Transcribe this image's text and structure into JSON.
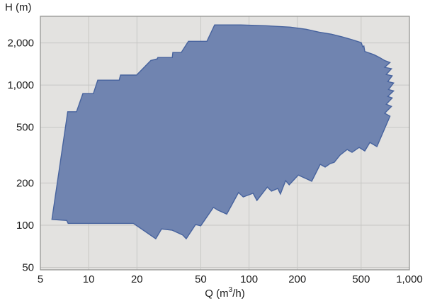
{
  "page": {
    "background": "#ffffff"
  },
  "chart_data": {
    "type": "area",
    "title": "",
    "ylabel": "H (m)",
    "xlabel_parts": {
      "pre": "Q (m",
      "sup": "3",
      "post": "/h)"
    },
    "x_scale": "log",
    "y_scale": "log",
    "xlim": [
      5,
      1000
    ],
    "ylim": [
      48,
      3100
    ],
    "grid": true,
    "legend": "none",
    "x_ticks": [
      {
        "v": 5,
        "label": "5"
      },
      {
        "v": 10,
        "label": "10"
      },
      {
        "v": 20,
        "label": "20"
      },
      {
        "v": 50,
        "label": "50"
      },
      {
        "v": 100,
        "label": "100"
      },
      {
        "v": 200,
        "label": "200"
      },
      {
        "v": 500,
        "label": "500"
      },
      {
        "v": 1000,
        "label": "1,000"
      }
    ],
    "y_ticks": [
      {
        "v": 50,
        "label": "50"
      },
      {
        "v": 100,
        "label": "100"
      },
      {
        "v": 200,
        "label": "200"
      },
      {
        "v": 500,
        "label": "500"
      },
      {
        "v": 1000,
        "label": "1,000"
      },
      {
        "v": 2000,
        "label": "2,000"
      }
    ],
    "x_gridlines": [
      10,
      20,
      50,
      100,
      200,
      500
    ],
    "y_gridlines": [
      50,
      100,
      200,
      500,
      1000,
      2000
    ],
    "colors": {
      "plot_bg": "#e3e2e0",
      "grid": "#c7c7c5",
      "plot_border": "#8f8f8d",
      "area_fill": "#7084b0",
      "area_stroke": "#47639e",
      "text": "#1c1c1c"
    },
    "series": [
      {
        "name": "pump-operating-range",
        "type": "area",
        "points_qh": [
          [
            5.9,
            110
          ],
          [
            7.4,
            645
          ],
          [
            8.4,
            645
          ],
          [
            9.2,
            870
          ],
          [
            10.7,
            870
          ],
          [
            11.4,
            1085
          ],
          [
            15.5,
            1085
          ],
          [
            15.8,
            1180
          ],
          [
            19.9,
            1180
          ],
          [
            24.4,
            1500
          ],
          [
            26.8,
            1540
          ],
          [
            27,
            1575
          ],
          [
            33.2,
            1575
          ],
          [
            33.5,
            1710
          ],
          [
            37.8,
            1710
          ],
          [
            41.9,
            2055
          ],
          [
            54.6,
            2055
          ],
          [
            61,
            2690
          ],
          [
            89,
            2690
          ],
          [
            127,
            2655
          ],
          [
            181,
            2595
          ],
          [
            227,
            2505
          ],
          [
            272,
            2390
          ],
          [
            327,
            2310
          ],
          [
            381,
            2210
          ],
          [
            439,
            2110
          ],
          [
            501,
            2010
          ],
          [
            511,
            1880
          ],
          [
            520,
            1900
          ],
          [
            527,
            1740
          ],
          [
            601,
            1650
          ],
          [
            652,
            1575
          ],
          [
            700,
            1500
          ],
          [
            757,
            1450
          ],
          [
            701,
            1340
          ],
          [
            773,
            1310
          ],
          [
            717,
            1190
          ],
          [
            781,
            1165
          ],
          [
            733,
            1060
          ],
          [
            797,
            1035
          ],
          [
            741,
            930
          ],
          [
            797,
            910
          ],
          [
            733,
            830
          ],
          [
            781,
            810
          ],
          [
            717,
            730
          ],
          [
            773,
            705
          ],
          [
            701,
            630
          ],
          [
            757,
            600
          ],
          [
            627,
            364
          ],
          [
            567,
            390
          ],
          [
            527,
            339
          ],
          [
            486,
            359
          ],
          [
            439,
            331
          ],
          [
            409,
            347
          ],
          [
            369,
            316
          ],
          [
            340,
            281
          ],
          [
            320,
            275
          ],
          [
            298,
            260
          ],
          [
            278,
            272
          ],
          [
            246,
            206
          ],
          [
            203,
            228
          ],
          [
            178,
            194
          ],
          [
            169,
            208
          ],
          [
            157,
            167
          ],
          [
            151,
            183
          ],
          [
            138,
            175
          ],
          [
            130,
            187
          ],
          [
            112,
            150
          ],
          [
            106,
            169
          ],
          [
            92,
            159
          ],
          [
            86,
            171
          ],
          [
            72.6,
            120
          ],
          [
            64,
            128
          ],
          [
            60,
            134
          ],
          [
            50,
            99
          ],
          [
            46.4,
            101
          ],
          [
            40.6,
            80
          ],
          [
            38.6,
            85
          ],
          [
            33.2,
            92
          ],
          [
            28.5,
            94
          ],
          [
            26.2,
            80
          ],
          [
            19,
            103
          ],
          [
            7.45,
            103
          ],
          [
            7.3,
            108
          ]
        ]
      }
    ]
  }
}
